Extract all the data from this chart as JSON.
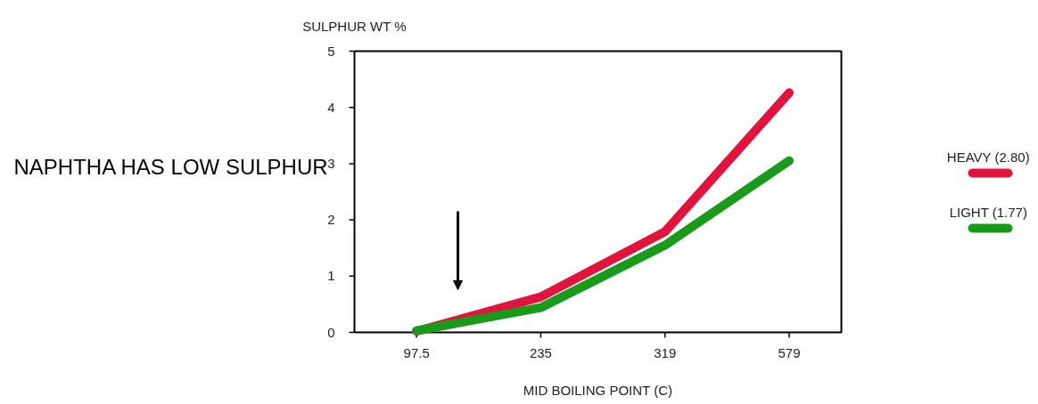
{
  "chart_data": {
    "type": "line",
    "categories": [
      "97.5",
      "235",
      "319",
      "579"
    ],
    "xlabel": "MID BOILING POINT (C)",
    "ylabel": "SULPHUR WT %",
    "ylim": [
      0,
      5
    ],
    "yticks": [
      0,
      1,
      2,
      3,
      4,
      5
    ],
    "series": [
      {
        "name": "HEAVY  (2.80)",
        "color": "#e0143c",
        "values": [
          0.02,
          0.63,
          1.79,
          4.26
        ]
      },
      {
        "name": "LIGHT  (1.77)",
        "color": "#1a9a1a",
        "values": [
          0.03,
          0.44,
          1.55,
          3.05
        ]
      }
    ],
    "legend": "right",
    "grid": false,
    "annotations": [
      "NAPHTHA HAS LOW SULPHUR"
    ]
  }
}
